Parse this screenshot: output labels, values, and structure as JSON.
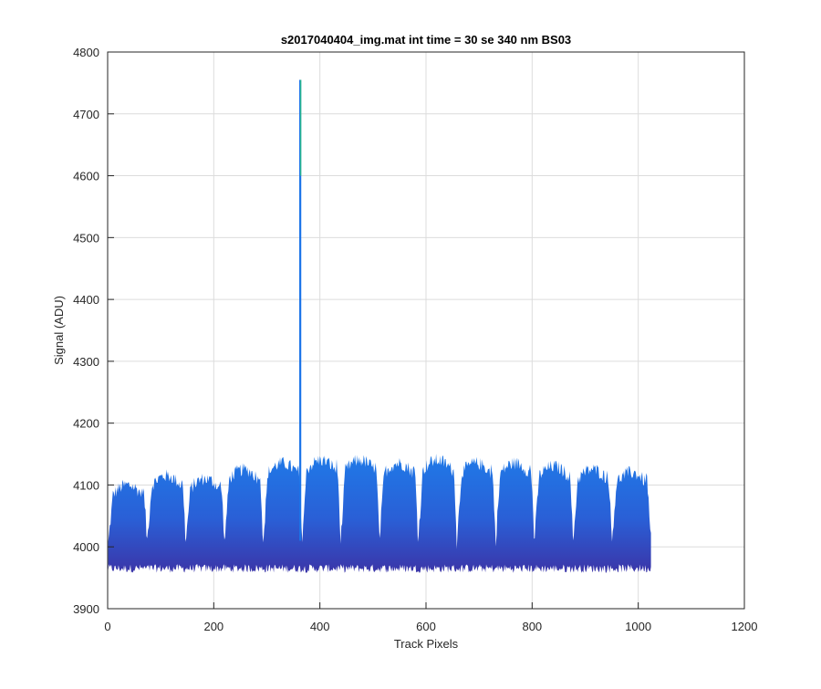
{
  "chart_data": {
    "type": "area",
    "title": "s2017040404_img.mat int time = 30 se  340 nm BS03",
    "xlabel": "Track Pixels",
    "ylabel": "Signal (ADU)",
    "xlim": [
      0,
      1200
    ],
    "ylim": [
      3900,
      4800
    ],
    "xticks": [
      0,
      200,
      400,
      600,
      800,
      1000,
      1200
    ],
    "yticks": [
      3900,
      4000,
      4100,
      4200,
      4300,
      4400,
      4500,
      4600,
      4700,
      4800
    ],
    "grid": true,
    "colors": {
      "top": "#1a73e8",
      "bottom": "#3b35a8",
      "spike": "#2ecc71"
    },
    "series": [
      {
        "pixel_range": [
          1,
          1024
        ],
        "baseline_min": 3965,
        "segment_period": 73,
        "segments_top": [
          4100,
          4115,
          4110,
          4125,
          4135,
          4140,
          4140,
          4135,
          4140,
          4135,
          4135,
          4130,
          4125,
          4120
        ],
        "segment_dip": 4005,
        "spike": {
          "x": 363,
          "y": 4755
        }
      }
    ]
  }
}
